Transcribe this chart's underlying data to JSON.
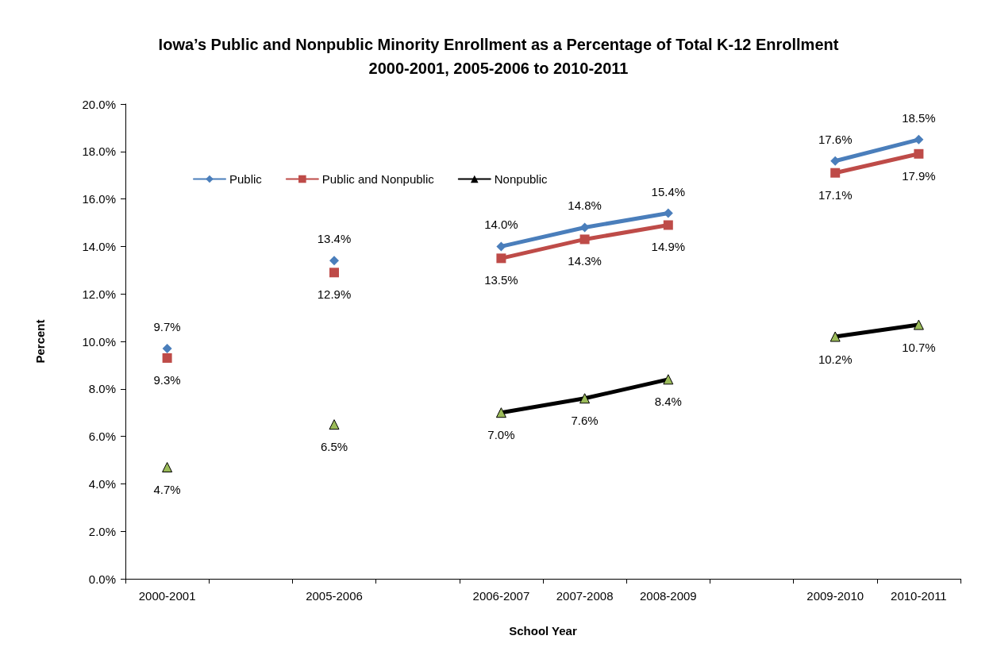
{
  "chart_data": {
    "type": "line",
    "title": "Iowa’s Public and Nonpublic Minority Enrollment as a Percentage of Total K-12 Enrollment\n2000-2001, 2005-2006 to 2010-2011",
    "xlabel": "School Year",
    "ylabel": "Percent",
    "categories": [
      "2000-2001",
      null,
      "2005-2006",
      null,
      "2006-2007",
      "2007-2008",
      "2008-2009",
      null,
      "2009-2010",
      "2010-2011"
    ],
    "series": [
      {
        "name": "Public",
        "color": "#4a7ebb",
        "marker": "diamond",
        "values": [
          9.7,
          null,
          13.4,
          null,
          14.0,
          14.8,
          15.4,
          null,
          17.6,
          18.5
        ],
        "value_labels": [
          "9.7%",
          null,
          "13.4%",
          null,
          "14.0%",
          "14.8%",
          "15.4%",
          null,
          "17.6%",
          "18.5%"
        ]
      },
      {
        "name": "Public and Nonpublic",
        "color": "#be4b48",
        "marker": "square",
        "values": [
          9.3,
          null,
          12.9,
          null,
          13.5,
          14.3,
          14.9,
          null,
          17.1,
          17.9
        ],
        "value_labels": [
          "9.3%",
          null,
          "12.9%",
          null,
          "13.5%",
          "14.3%",
          "14.9%",
          null,
          "17.1%",
          "17.9%"
        ]
      },
      {
        "name": "Nonpublic",
        "color": "#000000",
        "colors": [
          "#9bbb59",
          "#9bbb59",
          "#9bbb59",
          "#9bbb59",
          "#9bbb59",
          "#9bbb59",
          "#9bbb59",
          "#9bbb59",
          "#9bbb59",
          "#9bbb59"
        ],
        "marker": "triangle",
        "values": [
          4.7,
          null,
          6.5,
          null,
          7.0,
          7.6,
          8.4,
          null,
          10.2,
          10.7
        ],
        "value_labels": [
          "4.7%",
          null,
          "6.5%",
          null,
          "7.0%",
          "7.6%",
          "8.4%",
          null,
          "10.2%",
          "10.7%"
        ]
      }
    ],
    "ylim": [
      0,
      20
    ],
    "yticks": [
      {
        "value": 0,
        "label": "0.0%"
      },
      {
        "value": 2,
        "label": "2.0%"
      },
      {
        "value": 4,
        "label": "4.0%"
      },
      {
        "value": 6,
        "label": "6.0%"
      },
      {
        "value": 8,
        "label": "8.0%"
      },
      {
        "value": 10,
        "label": "10.0%"
      },
      {
        "value": 12,
        "label": "12.0%"
      },
      {
        "value": 14,
        "label": "14.0%"
      },
      {
        "value": 16,
        "label": "16.0%"
      },
      {
        "value": 18,
        "label": "18.0%"
      },
      {
        "value": 20,
        "label": "20.0%"
      }
    ],
    "grid": false,
    "legend": "top left",
    "line_style": "solid"
  }
}
